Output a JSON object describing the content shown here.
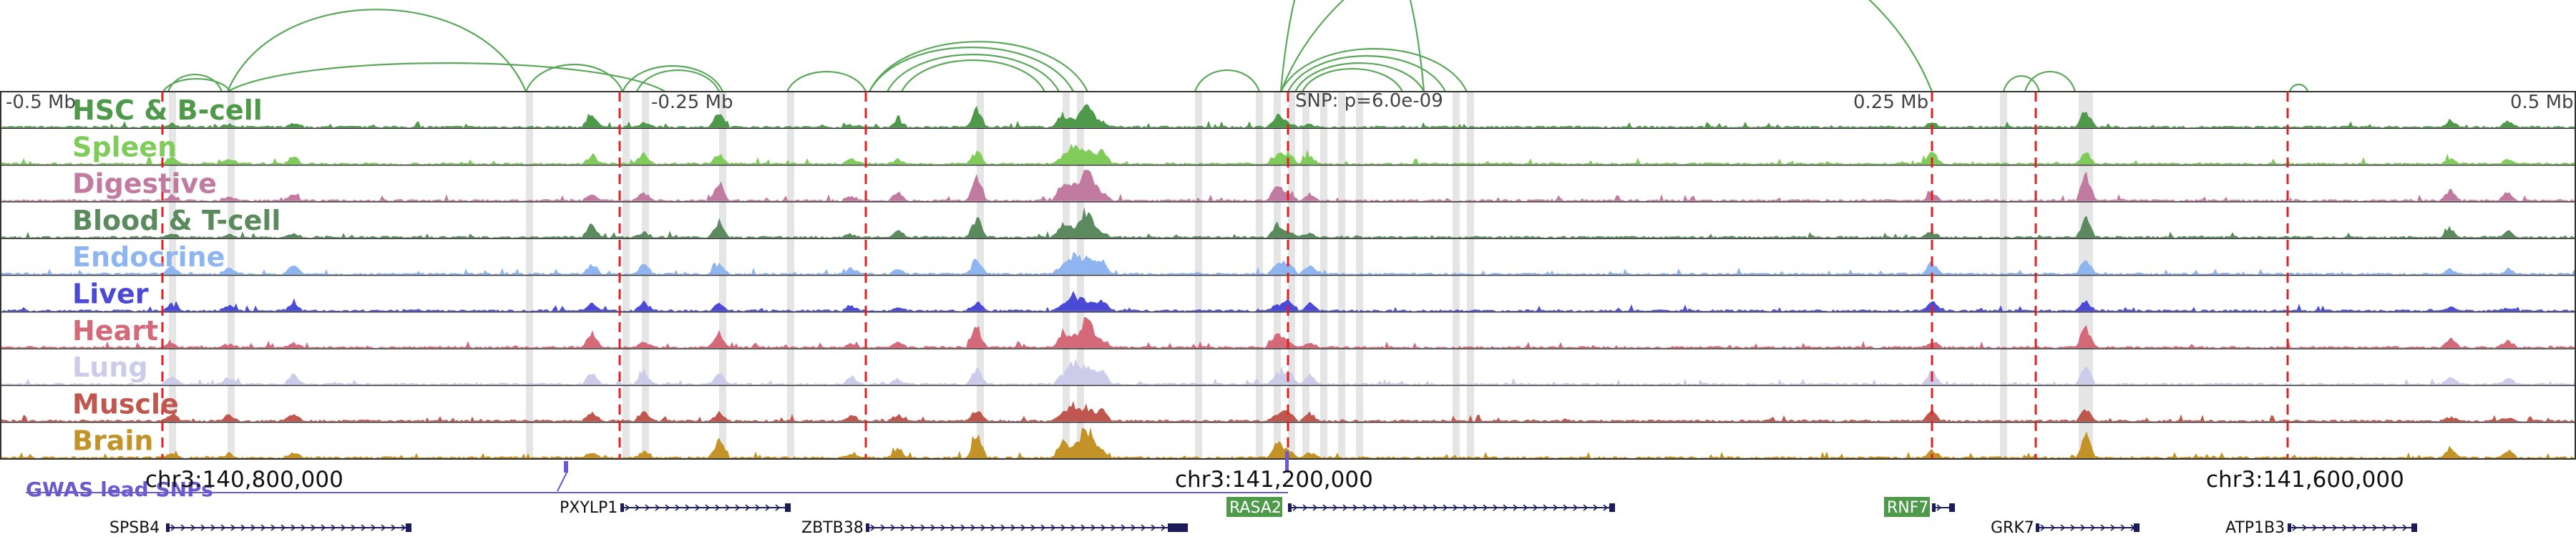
{
  "scale_labels": [
    "-0.5 Mb",
    "-0.25 Mb",
    "0.25 Mb",
    "0.5 Mb"
  ],
  "snp_label": "SNP: p=6.0e-09",
  "tracks": [
    {
      "label": "HSC & B-cell",
      "color": "#4f9a4a"
    },
    {
      "label": "Spleen",
      "color": "#7fcc5a"
    },
    {
      "label": "Digestive",
      "color": "#c27ba0"
    },
    {
      "label": "Blood & T-cell",
      "color": "#5b8a5e"
    },
    {
      "label": "Endocrine",
      "color": "#8fb5f0"
    },
    {
      "label": "Liver",
      "color": "#4b4ad6"
    },
    {
      "label": "Heart",
      "color": "#d46a79"
    },
    {
      "label": "Lung",
      "color": "#ccccea"
    },
    {
      "label": "Muscle",
      "color": "#c0574f"
    },
    {
      "label": "Brain",
      "color": "#c39327"
    }
  ],
  "coordinates": [
    "chr3:140,800,000",
    "chr3:141,200,000",
    "chr3:141,600,000"
  ],
  "gwas_label": "GWAS lead SNPs",
  "gwas_color": "#6a5acd",
  "arc_color": "#5aa85a",
  "red_line_color": "#e02020",
  "genes": [
    {
      "name": "SPSB4",
      "boxed": false
    },
    {
      "name": "PXYLP1",
      "boxed": false
    },
    {
      "name": "ZBTB38",
      "boxed": false
    },
    {
      "name": "RASA2",
      "boxed": true
    },
    {
      "name": "RNF7",
      "boxed": true
    },
    {
      "name": "GRK7",
      "boxed": false
    },
    {
      "name": "ATP1B3",
      "boxed": false
    }
  ],
  "gene_color": "#1c1c5c",
  "gene_box_color": "#4f9a4a"
}
